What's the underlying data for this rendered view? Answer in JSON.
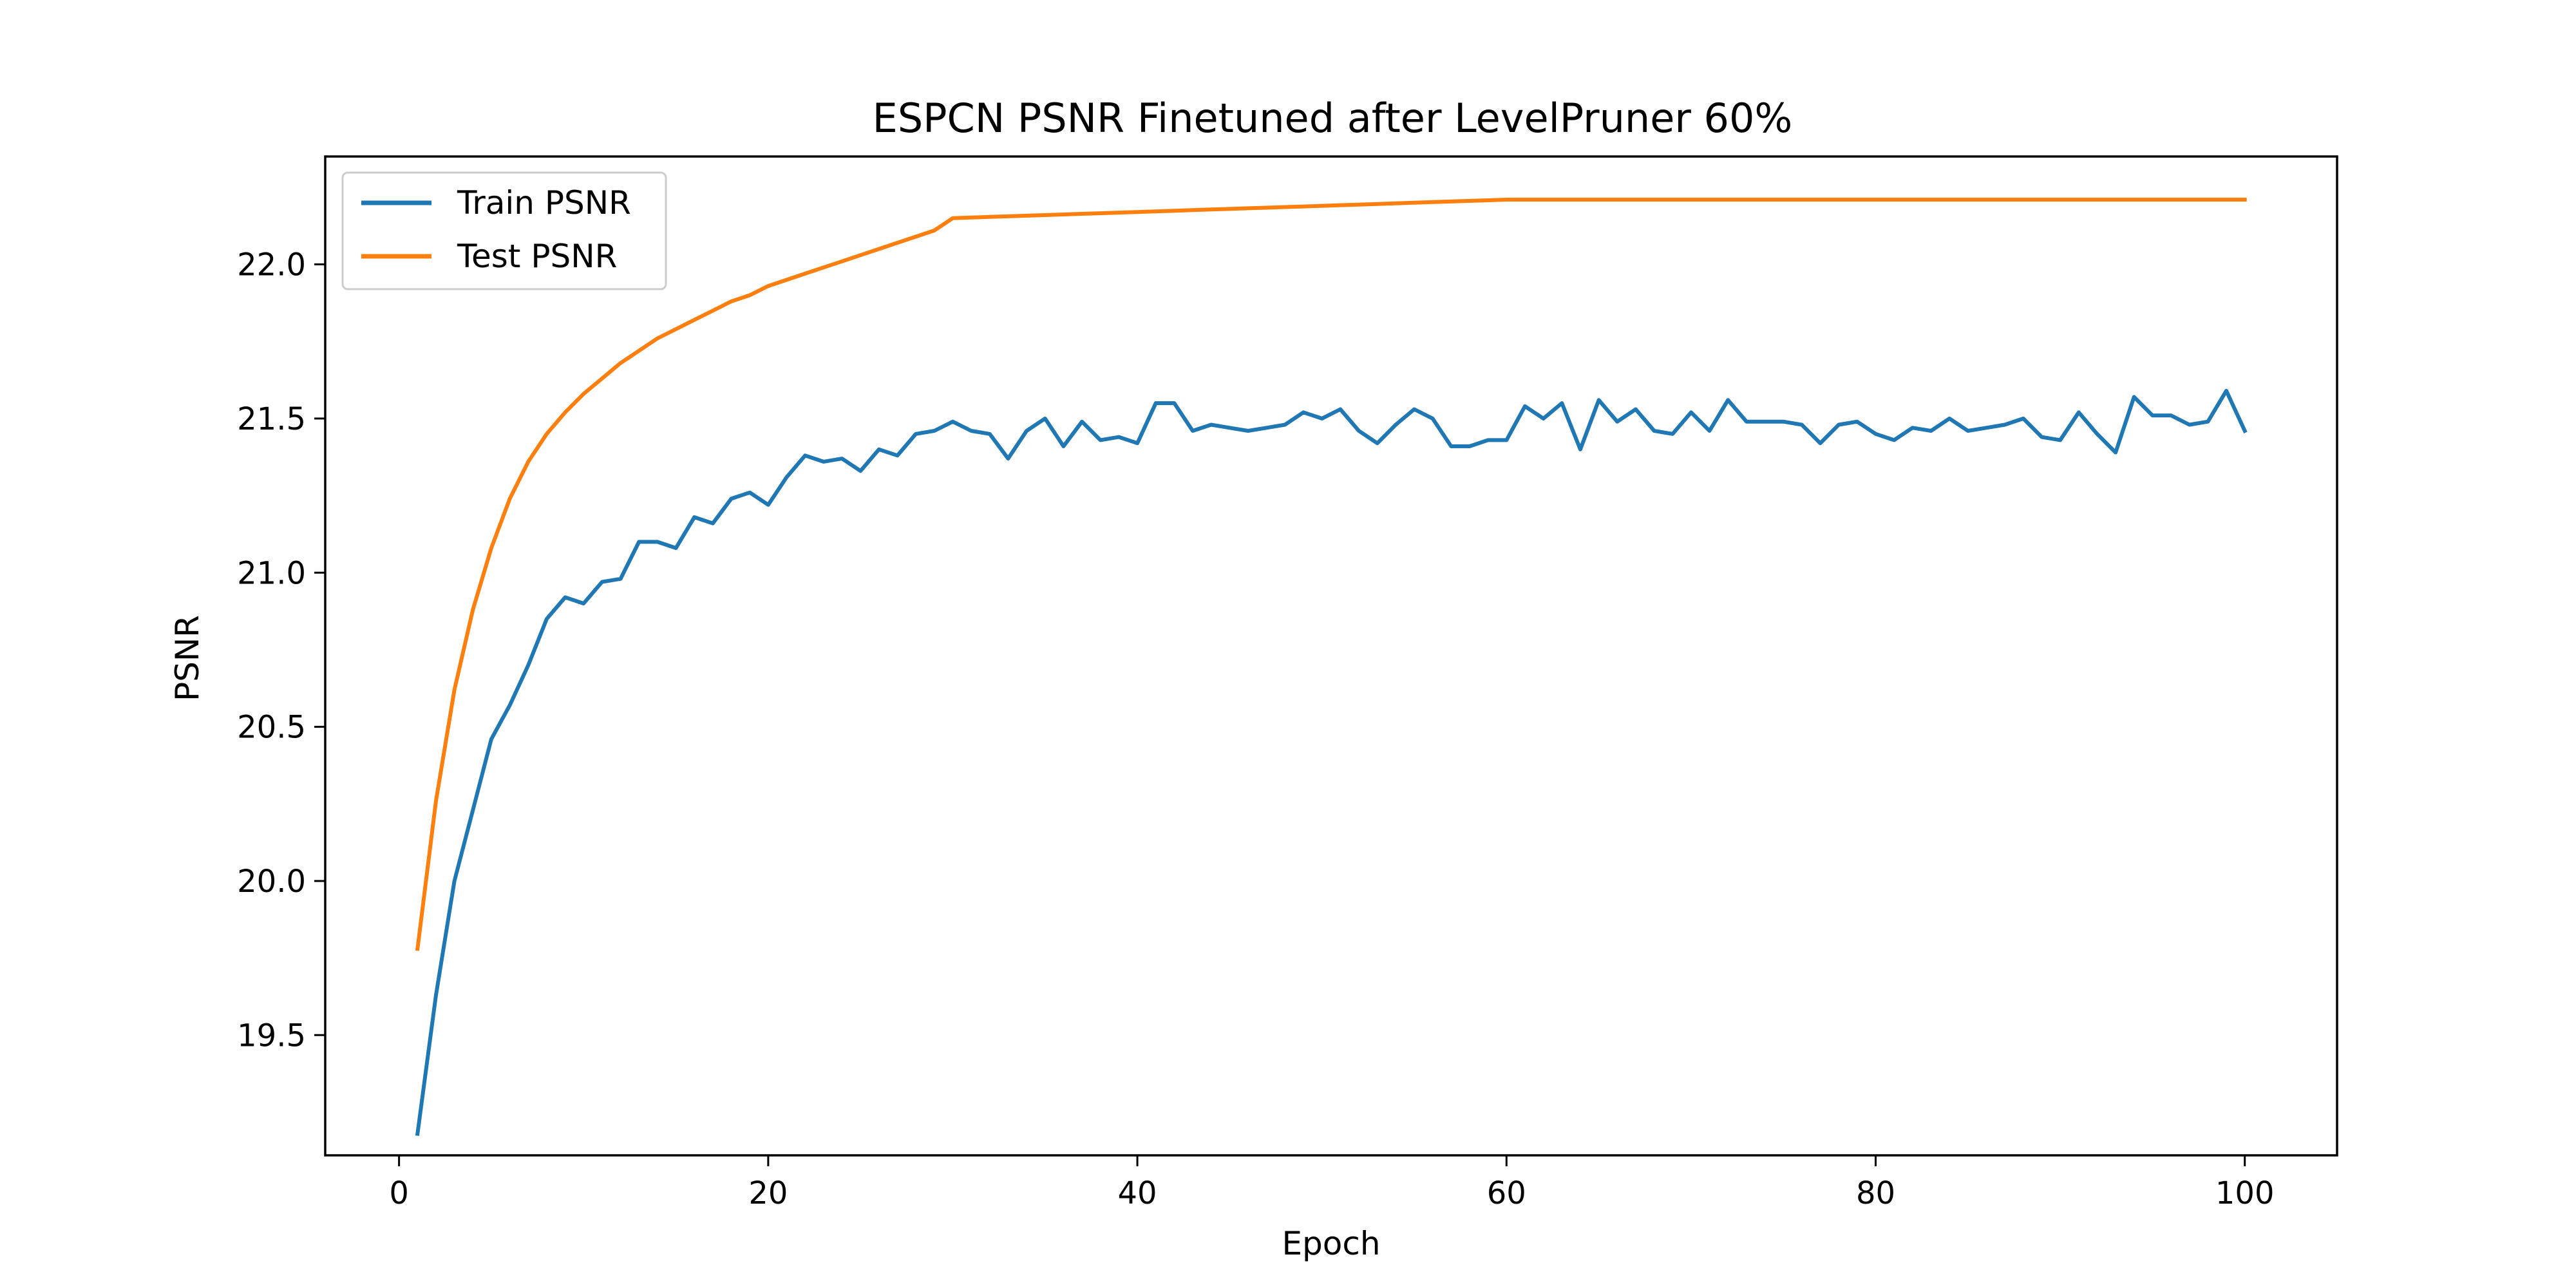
{
  "chart_data": {
    "type": "line",
    "title": "ESPCN PSNR Finetuned after LevelPruner 60%",
    "xlabel": "Epoch",
    "ylabel": "PSNR",
    "xlim": [
      -4,
      105
    ],
    "ylim": [
      19.11,
      22.35
    ],
    "xticks": [
      0,
      20,
      40,
      60,
      80,
      100
    ],
    "yticks": [
      19.5,
      20.0,
      20.5,
      21.0,
      21.5,
      22.0
    ],
    "xtick_labels": [
      "0",
      "20",
      "40",
      "60",
      "80",
      "100"
    ],
    "ytick_labels": [
      "19.5",
      "20.0",
      "20.5",
      "21.0",
      "21.5",
      "22.0"
    ],
    "grid": false,
    "legend_position": "upper-left",
    "x": [
      1,
      2,
      3,
      4,
      5,
      6,
      7,
      8,
      9,
      10,
      11,
      12,
      13,
      14,
      15,
      16,
      17,
      18,
      19,
      20,
      21,
      22,
      23,
      24,
      25,
      26,
      27,
      28,
      29,
      30,
      31,
      32,
      33,
      34,
      35,
      36,
      37,
      38,
      39,
      40,
      41,
      42,
      43,
      44,
      45,
      46,
      47,
      48,
      49,
      50,
      51,
      52,
      53,
      54,
      55,
      56,
      57,
      58,
      59,
      60,
      61,
      62,
      63,
      64,
      65,
      66,
      67,
      68,
      69,
      70,
      71,
      72,
      73,
      74,
      75,
      76,
      77,
      78,
      79,
      80,
      81,
      82,
      83,
      84,
      85,
      86,
      87,
      88,
      89,
      90,
      91,
      92,
      93,
      94,
      95,
      96,
      97,
      98,
      99,
      100
    ],
    "series": [
      {
        "name": "Train PSNR",
        "color": "#1f77b4",
        "values": [
          19.18,
          19.63,
          20.0,
          20.23,
          20.46,
          20.57,
          20.7,
          20.85,
          20.92,
          20.9,
          20.97,
          20.98,
          21.1,
          21.1,
          21.08,
          21.18,
          21.16,
          21.24,
          21.26,
          21.22,
          21.31,
          21.38,
          21.36,
          21.37,
          21.33,
          21.4,
          21.38,
          21.45,
          21.46,
          21.49,
          21.46,
          21.45,
          21.37,
          21.46,
          21.5,
          21.41,
          21.49,
          21.43,
          21.44,
          21.42,
          21.55,
          21.55,
          21.46,
          21.48,
          21.47,
          21.46,
          21.47,
          21.48,
          21.52,
          21.5,
          21.53,
          21.46,
          21.42,
          21.48,
          21.53,
          21.5,
          21.41,
          21.41,
          21.43,
          21.43,
          21.54,
          21.5,
          21.55,
          21.4,
          21.56,
          21.49,
          21.53,
          21.46,
          21.45,
          21.52,
          21.46,
          21.56,
          21.49,
          21.49,
          21.49,
          21.48,
          21.42,
          21.48,
          21.49,
          21.45,
          21.43,
          21.47,
          21.46,
          21.5,
          21.46,
          21.47,
          21.48,
          21.5,
          21.44,
          21.43,
          21.52,
          21.45,
          21.39,
          21.57,
          21.51,
          21.51,
          21.48,
          21.49,
          21.59,
          21.46
        ]
      },
      {
        "name": "Test PSNR",
        "color": "#ff7f0e",
        "values": [
          19.78,
          20.26,
          20.62,
          20.88,
          21.08,
          21.24,
          21.36,
          21.45,
          21.52,
          21.58,
          21.63,
          21.68,
          21.72,
          21.76,
          21.79,
          21.82,
          21.85,
          21.88,
          21.9,
          21.93,
          21.95,
          21.97,
          21.99,
          22.01,
          22.03,
          22.05,
          22.07,
          22.09,
          22.11,
          22.15,
          22.152,
          22.154,
          22.156,
          22.158,
          22.16,
          22.162,
          22.164,
          22.166,
          22.168,
          22.17,
          22.172,
          22.174,
          22.176,
          22.178,
          22.18,
          22.182,
          22.184,
          22.186,
          22.188,
          22.19,
          22.192,
          22.194,
          22.196,
          22.198,
          22.2,
          22.202,
          22.204,
          22.206,
          22.208,
          22.21,
          22.21,
          22.21,
          22.21,
          22.21,
          22.21,
          22.21,
          22.21,
          22.21,
          22.21,
          22.21,
          22.21,
          22.21,
          22.21,
          22.21,
          22.21,
          22.21,
          22.21,
          22.21,
          22.21,
          22.21,
          22.21,
          22.21,
          22.21,
          22.21,
          22.21,
          22.21,
          22.21,
          22.21,
          22.21,
          22.21,
          22.21,
          22.21,
          22.21,
          22.21,
          22.21,
          22.21,
          22.21,
          22.21,
          22.21,
          22.21
        ]
      }
    ]
  }
}
